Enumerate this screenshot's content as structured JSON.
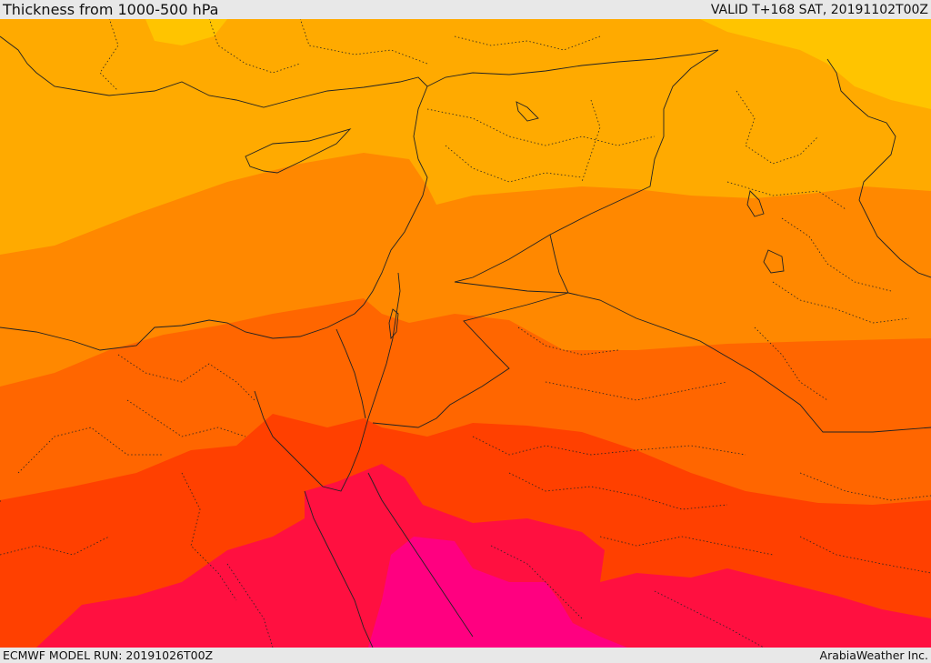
{
  "header": {
    "title": "Thickness from 1000-500 hPa",
    "valid": "VALID T+168 SAT, 20191102T00Z"
  },
  "footer": {
    "model_run": "ECMWF MODEL RUN: 20191026T00Z",
    "credit": "ArabiaWeather Inc."
  },
  "map": {
    "field": "1000-500 hPa thickness",
    "region": "Eastern Mediterranean / Levant / Northern Arabia",
    "color_bands": [
      "#ffc400",
      "#ffaa00",
      "#ff8800",
      "#ff6600",
      "#ff4000",
      "#ff1040",
      "#ff0080"
    ]
  }
}
